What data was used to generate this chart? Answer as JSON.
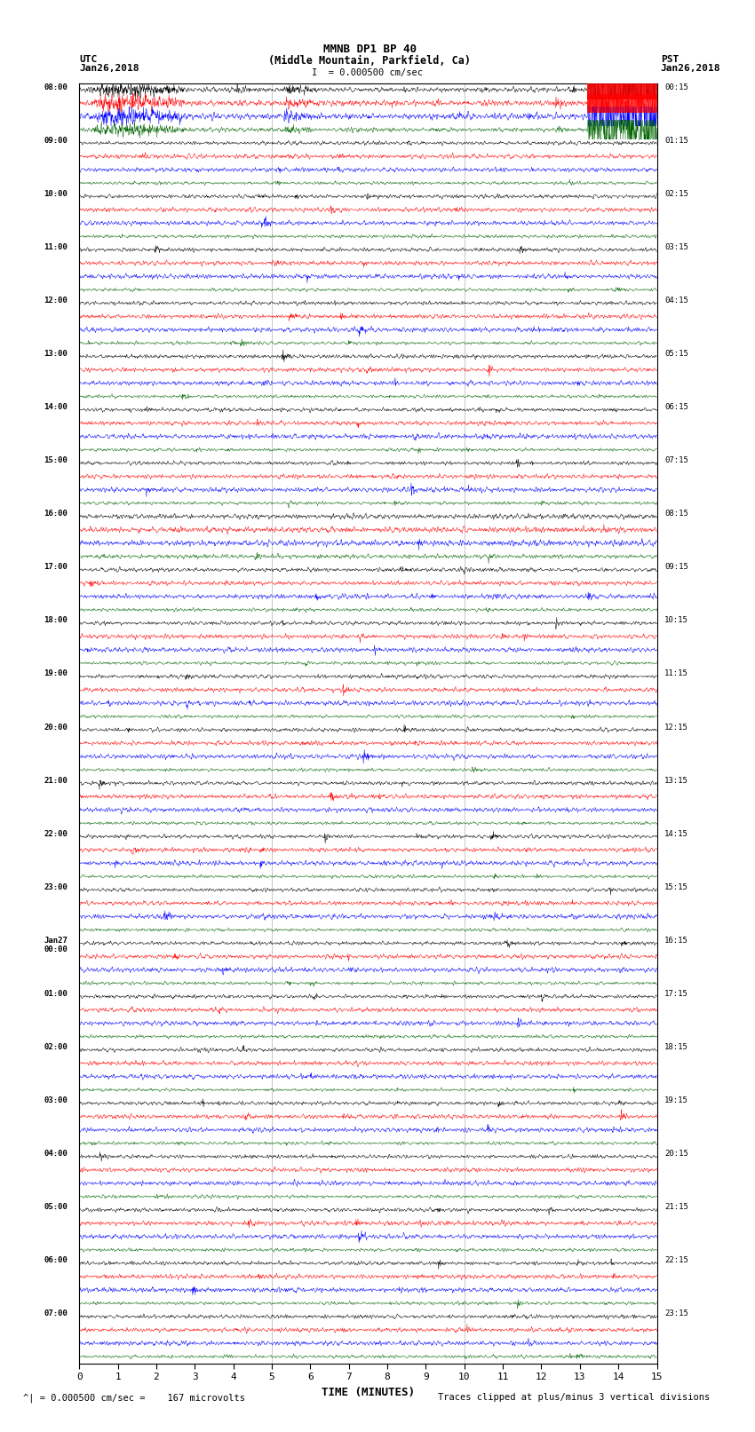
{
  "title_line1": "MMNB DP1 BP 40",
  "title_line2": "(Middle Mountain, Parkfield, Ca)",
  "left_label_top": "UTC",
  "left_label_date": "Jan26,2018",
  "right_label_top": "PST",
  "right_label_date": "Jan26,2018",
  "xlabel": "TIME (MINUTES)",
  "scale_text": "I  = 0.000500 cm/sec",
  "bottom_left_text": "= 0.000500 cm/sec =    167 microvolts",
  "bottom_right_text": "Traces clipped at plus/minus 3 vertical divisions",
  "bottom_scale_symbol": "^|",
  "xlim": [
    0,
    15
  ],
  "background_color": "#ffffff",
  "trace_colors": [
    "#000000",
    "#ff0000",
    "#0000ff",
    "#006400"
  ],
  "n_rows": 24,
  "utc_times_left": [
    "08:00",
    "09:00",
    "10:00",
    "11:00",
    "12:00",
    "13:00",
    "14:00",
    "15:00",
    "16:00",
    "17:00",
    "18:00",
    "19:00",
    "20:00",
    "21:00",
    "22:00",
    "23:00",
    "Jan27\n00:00",
    "01:00",
    "02:00",
    "03:00",
    "04:00",
    "05:00",
    "06:00",
    "07:00"
  ],
  "pst_times_right": [
    "00:15",
    "01:15",
    "02:15",
    "03:15",
    "04:15",
    "05:15",
    "06:15",
    "07:15",
    "08:15",
    "09:15",
    "10:15",
    "11:15",
    "12:15",
    "13:15",
    "14:15",
    "15:15",
    "16:15",
    "17:15",
    "18:15",
    "19:15",
    "20:15",
    "21:15",
    "22:15",
    "23:15"
  ],
  "fig_width": 8.5,
  "fig_height": 16.13,
  "dpi": 100
}
